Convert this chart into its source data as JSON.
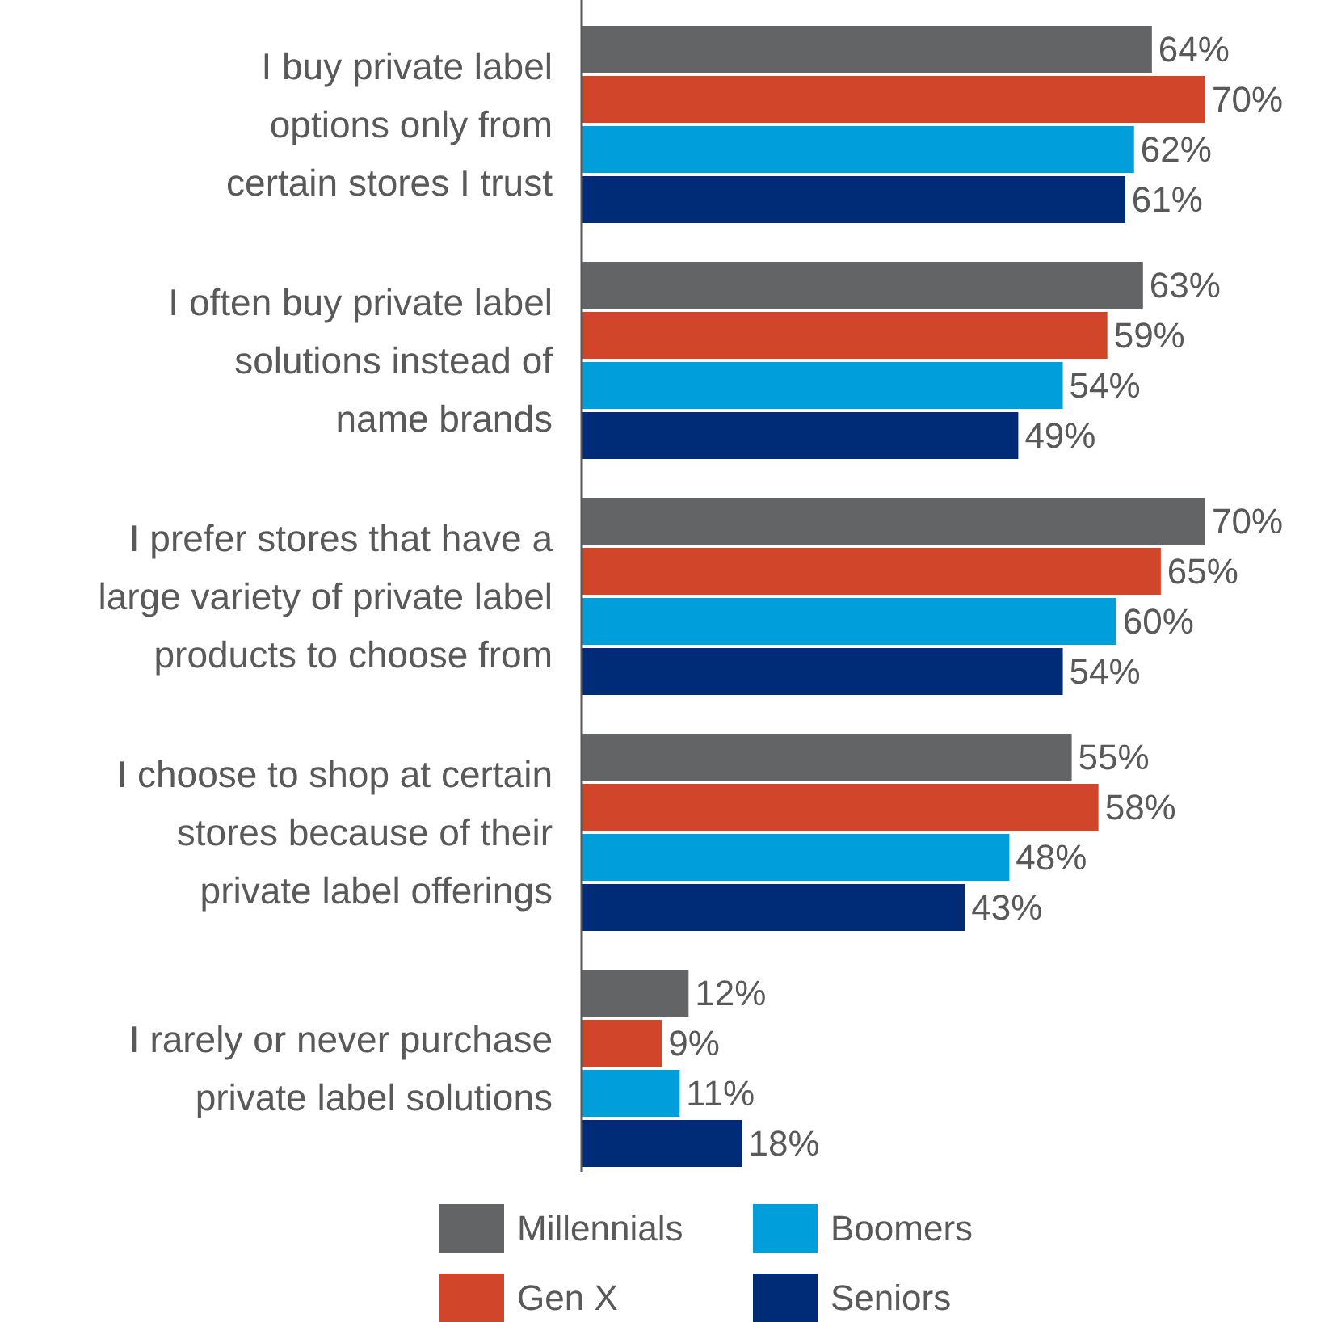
{
  "chart_data": {
    "type": "bar",
    "orientation": "horizontal",
    "legend": "bottom",
    "categories": [
      "I buy private label\noptions only from\ncertain stores I trust",
      "I often buy private label\nsolutions instead of\nname brands",
      "I prefer stores that have a\nlarge variety of private label\nproducts to choose from",
      "I choose to shop at certain\nstores because of their\nprivate label offerings",
      "I rarely or never purchase\nprivate label solutions"
    ],
    "series": [
      {
        "name": "Millennials",
        "color": "#636466",
        "values": [
          64,
          63,
          70,
          55,
          12
        ],
        "value_labels": [
          "64%",
          "63%",
          "70%",
          "55%",
          "12%"
        ]
      },
      {
        "name": "Gen X",
        "color": "#d1452a",
        "values": [
          70,
          59,
          65,
          58,
          9
        ],
        "value_labels": [
          "70%",
          "59%",
          "65%",
          "58%",
          "9%"
        ]
      },
      {
        "name": "Boomers",
        "color": "#009fdc",
        "values": [
          62,
          54,
          60,
          48,
          11
        ],
        "value_labels": [
          "62%",
          "54%",
          "60%",
          "48%",
          "11%"
        ]
      },
      {
        "name": "Seniors",
        "color": "#002c77",
        "values": [
          61,
          49,
          54,
          43,
          18
        ],
        "value_labels": [
          "61%",
          "49%",
          "54%",
          "43%",
          "18%"
        ]
      }
    ]
  }
}
